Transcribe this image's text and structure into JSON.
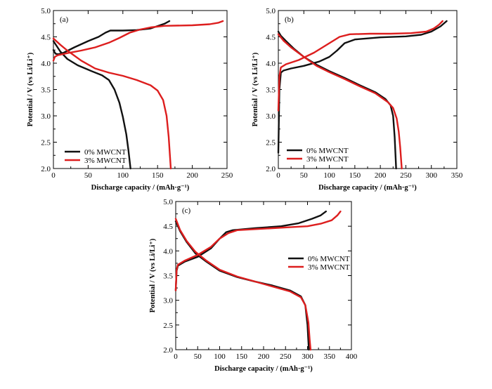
{
  "figure": {
    "legend_names": [
      "0% MWCNT",
      "3% MWCNT"
    ],
    "colors": {
      "s0": "#111111",
      "s3": "#dd1e1e"
    }
  },
  "chart_data": [
    {
      "type": "line",
      "panel_label": "(a)",
      "xlabel": "Discharge capacity / (mAh·g⁻¹)",
      "ylabel": "Potential / V (vs Li/Li⁺)",
      "xlim": [
        0,
        250
      ],
      "ylim": [
        2.0,
        5.0
      ],
      "xticks": [
        0,
        50,
        100,
        150,
        200,
        250
      ],
      "yticks": [
        2.0,
        2.5,
        3.0,
        3.5,
        4.0,
        4.5,
        5.0
      ],
      "legend": "lower-left",
      "series": [
        {
          "name": "0% MWCNT",
          "color": "#111111",
          "charge": [
            [
              0,
              4.25
            ],
            [
              3,
              4.18
            ],
            [
              7,
              4.17
            ],
            [
              15,
              4.2
            ],
            [
              30,
              4.3
            ],
            [
              50,
              4.42
            ],
            [
              65,
              4.5
            ],
            [
              75,
              4.58
            ],
            [
              82,
              4.62
            ],
            [
              100,
              4.62
            ],
            [
              120,
              4.63
            ],
            [
              140,
              4.66
            ],
            [
              160,
              4.75
            ],
            [
              167,
              4.8
            ]
          ],
          "discharge": [
            [
              0,
              4.42
            ],
            [
              10,
              4.22
            ],
            [
              20,
              4.08
            ],
            [
              35,
              3.96
            ],
            [
              55,
              3.85
            ],
            [
              70,
              3.77
            ],
            [
              80,
              3.68
            ],
            [
              88,
              3.5
            ],
            [
              95,
              3.25
            ],
            [
              100,
              2.98
            ],
            [
              105,
              2.65
            ],
            [
              108,
              2.35
            ],
            [
              111,
              2.0
            ]
          ]
        },
        {
          "name": "3% MWCNT",
          "color": "#dd1e1e",
          "charge": [
            [
              0,
              4.05
            ],
            [
              2,
              4.12
            ],
            [
              6,
              4.15
            ],
            [
              20,
              4.19
            ],
            [
              40,
              4.24
            ],
            [
              60,
              4.3
            ],
            [
              80,
              4.39
            ],
            [
              95,
              4.48
            ],
            [
              110,
              4.58
            ],
            [
              125,
              4.64
            ],
            [
              140,
              4.68
            ],
            [
              160,
              4.71
            ],
            [
              200,
              4.72
            ],
            [
              225,
              4.74
            ],
            [
              238,
              4.77
            ],
            [
              244,
              4.8
            ]
          ],
          "discharge": [
            [
              0,
              4.47
            ],
            [
              10,
              4.35
            ],
            [
              20,
              4.24
            ],
            [
              40,
              4.05
            ],
            [
              60,
              3.9
            ],
            [
              80,
              3.82
            ],
            [
              100,
              3.76
            ],
            [
              120,
              3.68
            ],
            [
              140,
              3.58
            ],
            [
              150,
              3.48
            ],
            [
              158,
              3.3
            ],
            [
              163,
              3.0
            ],
            [
              166,
              2.6
            ],
            [
              168,
              2.2
            ],
            [
              169,
              2.0
            ]
          ]
        }
      ]
    },
    {
      "type": "line",
      "panel_label": "(b)",
      "xlabel": "Discharge capacity / (mAh·g⁻¹)",
      "ylabel": "Potential / V (vs Li/Li⁺)",
      "xlim": [
        0,
        350
      ],
      "ylim": [
        2.0,
        5.0
      ],
      "xticks": [
        0,
        50,
        100,
        150,
        200,
        250,
        300,
        350
      ],
      "yticks": [
        2.0,
        2.5,
        3.0,
        3.5,
        4.0,
        4.5,
        5.0
      ],
      "legend": "lower-center",
      "series": [
        {
          "name": "0% MWCNT",
          "color": "#111111",
          "charge": [
            [
              0,
              2.3
            ],
            [
              2,
              3.5
            ],
            [
              5,
              3.82
            ],
            [
              10,
              3.86
            ],
            [
              25,
              3.9
            ],
            [
              50,
              3.95
            ],
            [
              80,
              4.03
            ],
            [
              100,
              4.12
            ],
            [
              115,
              4.24
            ],
            [
              130,
              4.38
            ],
            [
              150,
              4.45
            ],
            [
              200,
              4.49
            ],
            [
              250,
              4.51
            ],
            [
              280,
              4.54
            ],
            [
              300,
              4.6
            ],
            [
              318,
              4.7
            ],
            [
              330,
              4.8
            ]
          ],
          "discharge": [
            [
              0,
              4.6
            ],
            [
              5,
              4.52
            ],
            [
              15,
              4.42
            ],
            [
              30,
              4.28
            ],
            [
              50,
              4.12
            ],
            [
              75,
              3.97
            ],
            [
              100,
              3.85
            ],
            [
              130,
              3.72
            ],
            [
              160,
              3.58
            ],
            [
              190,
              3.45
            ],
            [
              210,
              3.32
            ],
            [
              220,
              3.2
            ],
            [
              225,
              3.0
            ],
            [
              228,
              2.6
            ],
            [
              230,
              2.2
            ],
            [
              231,
              2.0
            ]
          ]
        },
        {
          "name": "3% MWCNT",
          "color": "#dd1e1e",
          "charge": [
            [
              0,
              3.1
            ],
            [
              2,
              3.75
            ],
            [
              5,
              3.92
            ],
            [
              15,
              3.98
            ],
            [
              40,
              4.06
            ],
            [
              70,
              4.2
            ],
            [
              100,
              4.38
            ],
            [
              120,
              4.5
            ],
            [
              140,
              4.55
            ],
            [
              180,
              4.56
            ],
            [
              220,
              4.56
            ],
            [
              260,
              4.57
            ],
            [
              290,
              4.6
            ],
            [
              305,
              4.66
            ],
            [
              315,
              4.73
            ],
            [
              322,
              4.8
            ]
          ],
          "discharge": [
            [
              0,
              4.55
            ],
            [
              10,
              4.43
            ],
            [
              25,
              4.3
            ],
            [
              50,
              4.12
            ],
            [
              75,
              3.95
            ],
            [
              100,
              3.83
            ],
            [
              130,
              3.7
            ],
            [
              160,
              3.56
            ],
            [
              190,
              3.43
            ],
            [
              215,
              3.26
            ],
            [
              225,
              3.15
            ],
            [
              232,
              2.95
            ],
            [
              236,
              2.7
            ],
            [
              239,
              2.4
            ],
            [
              242,
              2.0
            ]
          ]
        }
      ]
    },
    {
      "type": "line",
      "panel_label": "(c)",
      "xlabel": "Discharge capacity / (mAh·g⁻¹)",
      "ylabel": "Potential / V (vs Li/Li⁺)",
      "xlim": [
        0,
        400
      ],
      "ylim": [
        2.0,
        5.0
      ],
      "xticks": [
        0,
        50,
        100,
        150,
        200,
        250,
        300,
        350,
        400
      ],
      "yticks": [
        2.0,
        2.5,
        3.0,
        3.5,
        4.0,
        4.5,
        5.0
      ],
      "legend": "top-right",
      "series": [
        {
          "name": "0% MWCNT",
          "color": "#111111",
          "charge": [
            [
              0,
              3.2
            ],
            [
              2,
              3.6
            ],
            [
              5,
              3.7
            ],
            [
              20,
              3.78
            ],
            [
              50,
              3.88
            ],
            [
              80,
              4.05
            ],
            [
              100,
              4.25
            ],
            [
              115,
              4.38
            ],
            [
              130,
              4.42
            ],
            [
              180,
              4.46
            ],
            [
              240,
              4.5
            ],
            [
              280,
              4.56
            ],
            [
              310,
              4.65
            ],
            [
              330,
              4.72
            ],
            [
              342,
              4.8
            ]
          ],
          "discharge": [
            [
              0,
              4.6
            ],
            [
              10,
              4.4
            ],
            [
              25,
              4.18
            ],
            [
              45,
              3.95
            ],
            [
              70,
              3.78
            ],
            [
              100,
              3.6
            ],
            [
              140,
              3.47
            ],
            [
              180,
              3.38
            ],
            [
              220,
              3.3
            ],
            [
              260,
              3.2
            ],
            [
              285,
              3.08
            ],
            [
              295,
              2.9
            ],
            [
              300,
              2.5
            ],
            [
              303,
              2.0
            ]
          ]
        },
        {
          "name": "3% MWCNT",
          "color": "#dd1e1e",
          "charge": [
            [
              0,
              3.2
            ],
            [
              2,
              3.62
            ],
            [
              5,
              3.72
            ],
            [
              20,
              3.8
            ],
            [
              50,
              3.92
            ],
            [
              80,
              4.08
            ],
            [
              100,
              4.25
            ],
            [
              120,
              4.36
            ],
            [
              140,
              4.42
            ],
            [
              200,
              4.45
            ],
            [
              260,
              4.48
            ],
            [
              300,
              4.5
            ],
            [
              330,
              4.55
            ],
            [
              355,
              4.62
            ],
            [
              368,
              4.72
            ],
            [
              375,
              4.8
            ]
          ],
          "discharge": [
            [
              0,
              4.65
            ],
            [
              10,
              4.42
            ],
            [
              25,
              4.2
            ],
            [
              45,
              3.98
            ],
            [
              70,
              3.8
            ],
            [
              100,
              3.62
            ],
            [
              140,
              3.48
            ],
            [
              180,
              3.38
            ],
            [
              220,
              3.28
            ],
            [
              260,
              3.18
            ],
            [
              285,
              3.06
            ],
            [
              295,
              2.9
            ],
            [
              302,
              2.55
            ],
            [
              305,
              2.2
            ],
            [
              307,
              2.0
            ]
          ]
        }
      ]
    }
  ]
}
